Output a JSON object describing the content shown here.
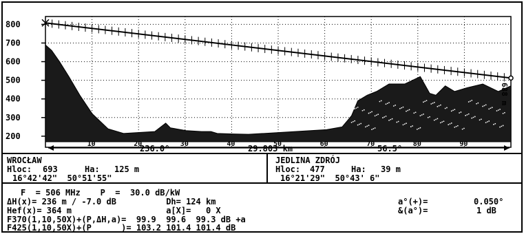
{
  "chart_data": {
    "type": "area",
    "y_ticks": [
      "800",
      "700",
      "600",
      "500",
      "400",
      "300",
      "200"
    ],
    "ylim": [
      170,
      820
    ],
    "x_ticks": [
      "10",
      "20",
      "30",
      "40",
      "50",
      "60",
      "70",
      "80",
      "90"
    ],
    "xlim": [
      0,
      29.803
    ],
    "right_axis_label": "688 m",
    "terrain": {
      "x": [
        0,
        0.4,
        0.9,
        1.5,
        2.2,
        3.0,
        4.0,
        5.0,
        6.0,
        7.0,
        7.7,
        8.0,
        9.0,
        10.0,
        10.6,
        11.0,
        12.0,
        13.0,
        14.0,
        15.0,
        16.0,
        17.0,
        18.0,
        19.0,
        19.6,
        20.0,
        20.6,
        21.2,
        22.0,
        23.0,
        24.0,
        24.6,
        25.0,
        25.6,
        26.2,
        27.0,
        28.0,
        29.0,
        29.8
      ],
      "y": [
        690,
        660,
        600,
        520,
        420,
        320,
        240,
        215,
        220,
        225,
        270,
        245,
        230,
        225,
        225,
        215,
        212,
        210,
        215,
        220,
        225,
        230,
        235,
        250,
        310,
        390,
        420,
        440,
        480,
        480,
        520,
        430,
        420,
        470,
        440,
        460,
        480,
        440,
        470
      ]
    },
    "los_line": {
      "x": [
        0,
        29.803
      ],
      "y": [
        808,
        512
      ]
    },
    "bottom_scale": {
      "left_angle": "236.0°",
      "distance": "29.803 km",
      "right_angle": "56.5°"
    }
  },
  "site_a": {
    "name": "WROCŁAW",
    "hloc_label": "Hloc:",
    "hloc_value": "693",
    "ha_label": "Ha:",
    "ha_value": "125 m",
    "coords": "16°42'42\"  50°51'55\""
  },
  "site_b": {
    "name": "JEDLINA ZDRÓJ",
    "hloc_label": "Hloc:",
    "hloc_value": "477",
    "ha_label": "Ha:",
    "ha_value": "39 m",
    "coords": "16°21'29\"  50°43' 6\""
  },
  "params": {
    "line1": "F  = 506 MHz    P  =  30.0 dB/kW",
    "line2": "ΔH(x)= 236 m / -7.0 dB          Dh= 124 km",
    "line3": "Hef(x)= 364 m                   a[X]=   0 X",
    "line4": "F370(1,10,50X)+(P,ΔH,a)=  99.9  99.6  99.3 dB +a",
    "line5": "F425(1,10,50X)+(P      )= 103.2 101.4 101.4 dB",
    "right_label1": "a°(+)=",
    "right_value1": "0.050°",
    "right_label2": "&(a°)=",
    "right_value2": "1 dB"
  },
  "colors": {
    "ink": "#000000",
    "paper": "#ffffff"
  }
}
